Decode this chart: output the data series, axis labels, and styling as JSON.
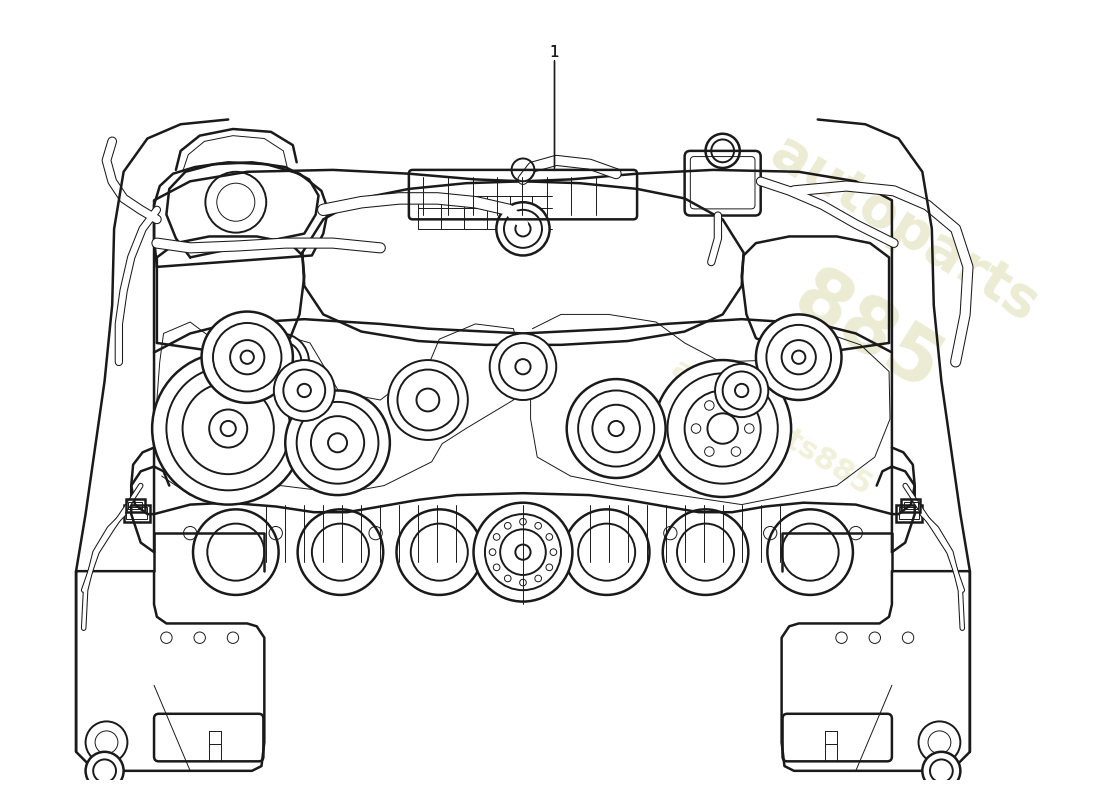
{
  "bg_color": "#ffffff",
  "line_color": "#1a1a1a",
  "lw": 1.4,
  "lw_thin": 0.7,
  "lw_thick": 1.8,
  "watermark_color1": "#c8c87a",
  "watermark_color2": "#b0b090"
}
